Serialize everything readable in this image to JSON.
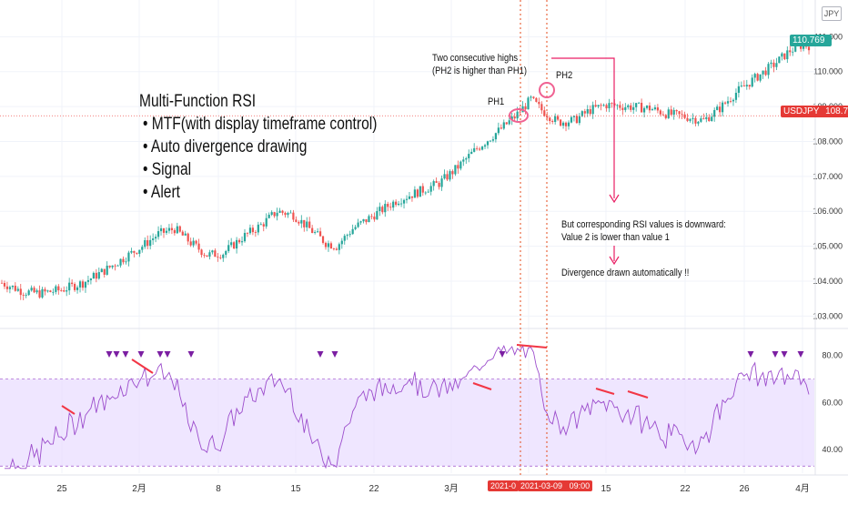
{
  "currency_label": "JPY",
  "colors": {
    "up": "#26a69a",
    "down": "#ef5350",
    "rsi_line": "#9c4dcc",
    "rsi_band": "#e9ddff",
    "divergence": "#f23645",
    "signal": "#7b1fa2",
    "annotation": "#e91e63",
    "price_badge": "#e53935",
    "last_badge": "#26a69a",
    "date_badge": "#e53935"
  },
  "overlay": {
    "title": "Multi-Function RSI",
    "bullets": [
      "• MTF(with display timeframe control)",
      "• Auto divergence drawing",
      "• Signal",
      "• Alert"
    ]
  },
  "annotations": {
    "highs_text_1": "Two consecutive highs",
    "highs_text_2": "(PH2 is higher than PH1)",
    "ph1": "PH1",
    "ph2": "PH2",
    "rsi_text_1": "But corresponding RSI values is downward:",
    "rsi_text_2": "Value 2 is lower than value 1",
    "auto_text": "Divergence drawn automatically !!"
  },
  "price_badges": {
    "last_price": "110.769",
    "symbol": "USDJPY",
    "symbol_price": "108.736"
  },
  "date_badges": {
    "date1": "2021-0",
    "date2": "2021-03-09",
    "time": "09:00"
  },
  "chart_data": [
    {
      "type": "candlestick",
      "symbol": "USDJPY",
      "y_ticks": [
        "111.000",
        "110.000",
        "109.000",
        "108.000",
        "107.000",
        "106.000",
        "105.000",
        "104.000",
        "103.000"
      ],
      "ylim": [
        102.8,
        111.4
      ],
      "x_ticks": [
        "25",
        "2月",
        "8",
        "15",
        "22",
        "3月",
        "8",
        "15",
        "22",
        "26",
        "4月"
      ],
      "close_path": [
        [
          0,
          103.95
        ],
        [
          8,
          103.7
        ],
        [
          14,
          103.65
        ],
        [
          22,
          103.75
        ],
        [
          30,
          103.95
        ],
        [
          38,
          104.3
        ],
        [
          46,
          104.7
        ],
        [
          52,
          105.0
        ],
        [
          58,
          105.35
        ],
        [
          64,
          105.5
        ],
        [
          70,
          105.1
        ],
        [
          76,
          104.75
        ],
        [
          82,
          104.8
        ],
        [
          90,
          105.3
        ],
        [
          96,
          105.6
        ],
        [
          102,
          106.0
        ],
        [
          108,
          105.9
        ],
        [
          114,
          105.5
        ],
        [
          120,
          105.1
        ],
        [
          124,
          105.0
        ],
        [
          130,
          105.5
        ],
        [
          138,
          105.9
        ],
        [
          146,
          106.3
        ],
        [
          154,
          106.55
        ],
        [
          162,
          106.8
        ],
        [
          168,
          107.2
        ],
        [
          176,
          107.8
        ],
        [
          184,
          108.3
        ],
        [
          190,
          108.7
        ],
        [
          196,
          109.2
        ],
        [
          200,
          108.9
        ],
        [
          206,
          108.55
        ],
        [
          212,
          108.6
        ],
        [
          218,
          108.9
        ],
        [
          224,
          109.05
        ],
        [
          232,
          109.0
        ],
        [
          240,
          108.95
        ],
        [
          246,
          108.8
        ],
        [
          254,
          108.7
        ],
        [
          260,
          108.6
        ],
        [
          266,
          108.95
        ],
        [
          272,
          109.4
        ],
        [
          278,
          109.75
        ],
        [
          286,
          110.2
        ],
        [
          292,
          110.6
        ],
        [
          296,
          110.75
        ],
        [
          300,
          110.75
        ]
      ],
      "current_price": 108.736
    },
    {
      "type": "line",
      "name": "RSI",
      "y_ticks": [
        "80.00",
        "60.00",
        "40.00"
      ],
      "ylim": [
        30,
        88
      ],
      "band": [
        33,
        70
      ],
      "signals_count": 14
    }
  ]
}
